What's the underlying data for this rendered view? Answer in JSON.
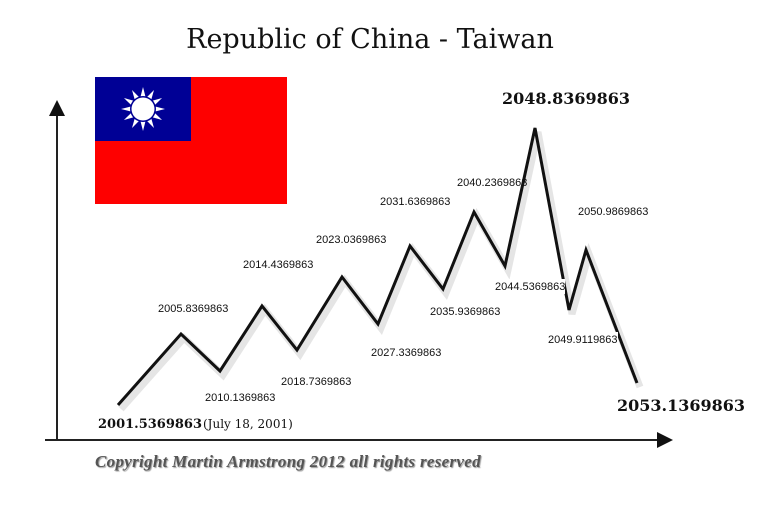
{
  "title": "Republic of China - Taiwan",
  "flag": {
    "name": "Taiwan flag",
    "colors": {
      "field": "#fe0000",
      "canton": "#000095",
      "sun": "#ffffff"
    }
  },
  "turning_points": [
    {
      "label": "2001.5369863",
      "note": "(July 18, 2001)",
      "type": "low",
      "emphasis": true
    },
    {
      "label": "2005.8369863",
      "type": "high"
    },
    {
      "label": "2010.1369863",
      "type": "low"
    },
    {
      "label": "2014.4369863",
      "type": "high"
    },
    {
      "label": "2018.7369863",
      "type": "low"
    },
    {
      "label": "2023.0369863",
      "type": "high"
    },
    {
      "label": "2027.3369863",
      "type": "low"
    },
    {
      "label": "2031.6369863",
      "type": "high"
    },
    {
      "label": "2035.9369863",
      "type": "low"
    },
    {
      "label": "2040.2369863",
      "type": "high"
    },
    {
      "label": "2044.5369863",
      "type": "low"
    },
    {
      "label": "2048.8369863",
      "type": "high",
      "emphasis": true
    },
    {
      "label": "2049.9119863",
      "type": "low"
    },
    {
      "label": "2050.9869863",
      "type": "high"
    },
    {
      "label": "2053.1369863",
      "type": "low",
      "emphasis": true
    }
  ],
  "copyright": "Copyright Martin Armstrong 2012 all rights reserved"
}
